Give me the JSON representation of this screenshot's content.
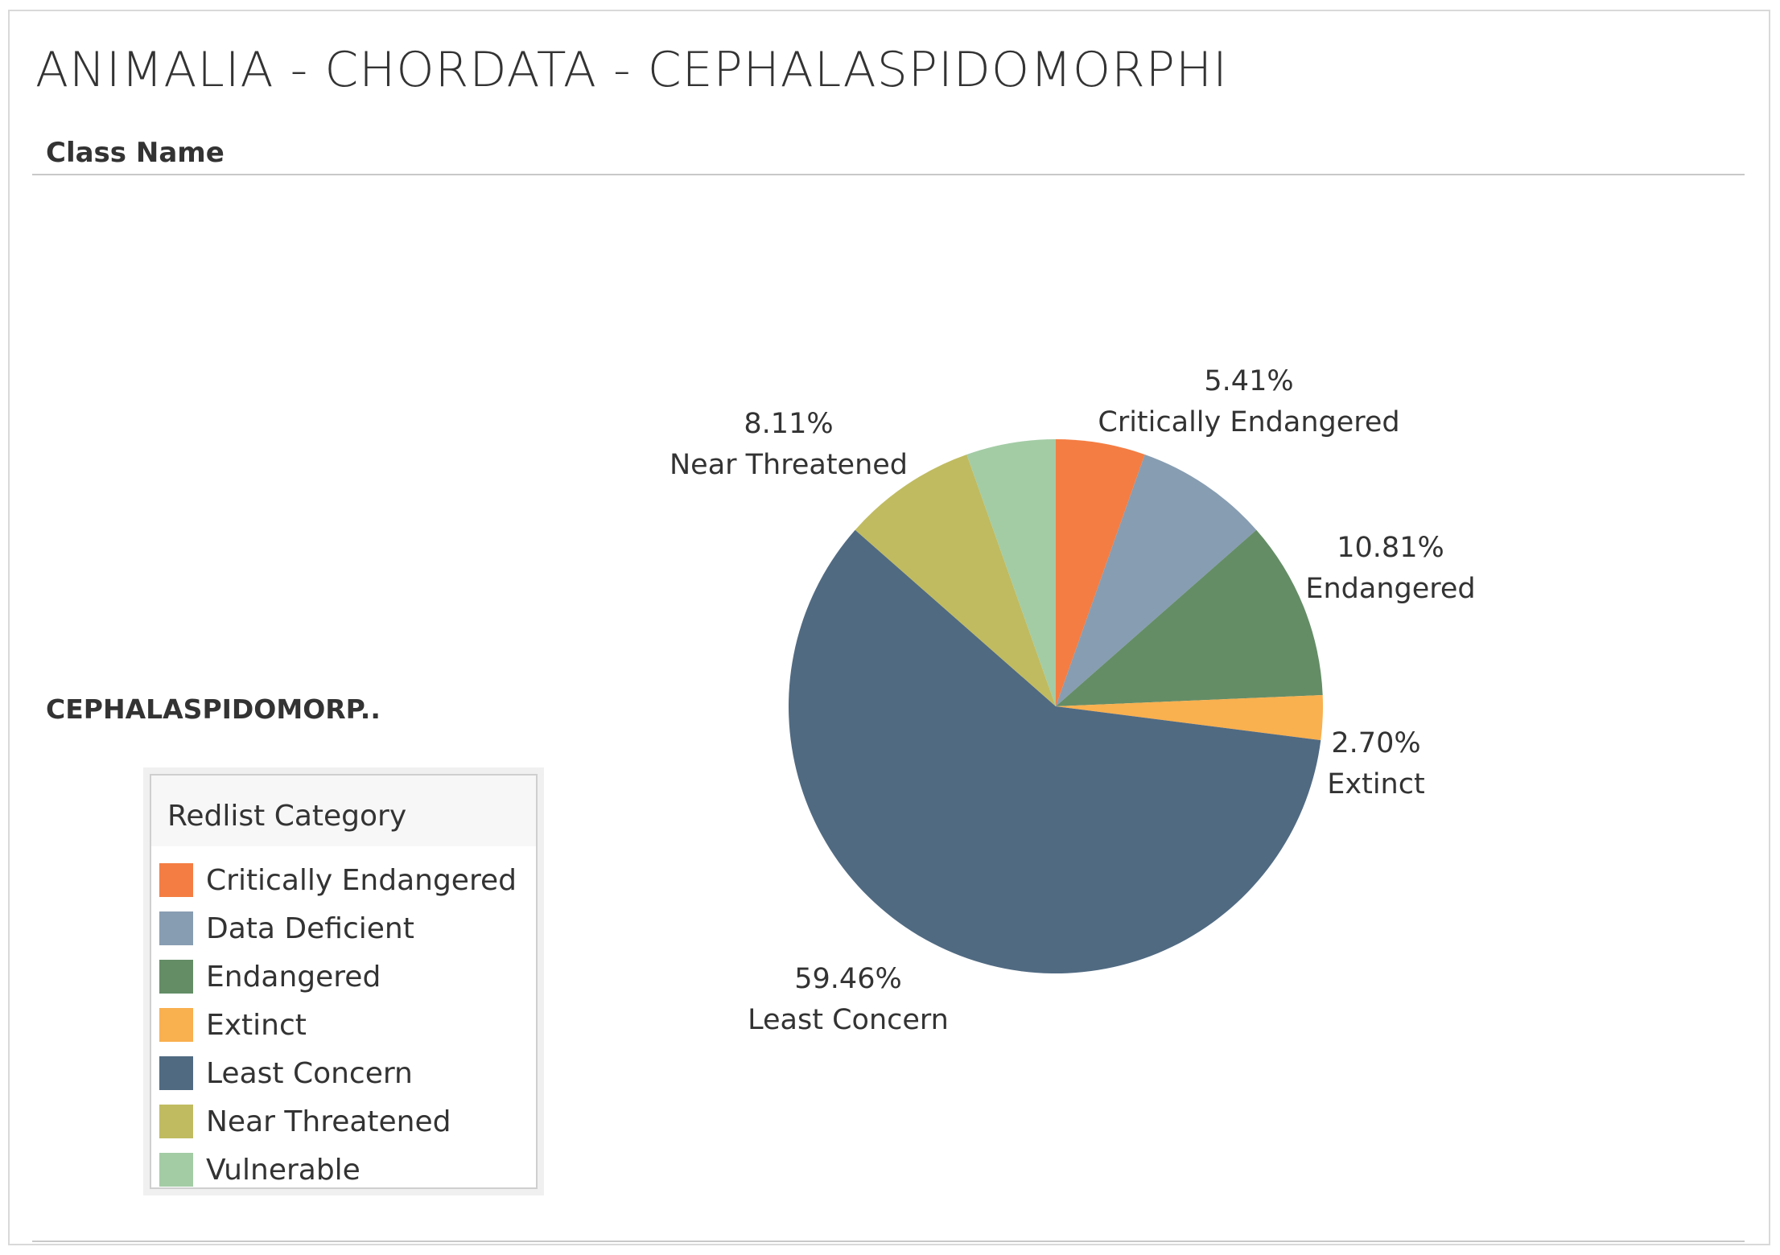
{
  "title": "ANIMALIA - CHORDATA - CEPHALASPIDOMORPHI",
  "column_header": "Class Name",
  "row_label": "CEPHALASPIDOMORP..",
  "legend": {
    "title": "Redlist Category",
    "items": [
      {
        "label": "Critically Endangered",
        "color": "#f47d43"
      },
      {
        "label": "Data Deficient",
        "color": "#879db2"
      },
      {
        "label": "Endangered",
        "color": "#648d66"
      },
      {
        "label": "Extinct",
        "color": "#f9b04f"
      },
      {
        "label": "Least Concern",
        "color": "#506a82"
      },
      {
        "label": "Near Threatened",
        "color": "#c0bb60"
      },
      {
        "label": "Vulnerable",
        "color": "#a3cca5"
      }
    ]
  },
  "chart_data": {
    "type": "pie",
    "legend_position": "left",
    "slices": [
      {
        "name": "Critically Endangered",
        "value": 5.41,
        "label_pct": "5.41%",
        "show_label": true,
        "color": "#f47d43"
      },
      {
        "name": "Data Deficient",
        "value": 8.11,
        "label_pct": "",
        "show_label": false,
        "color": "#879db2"
      },
      {
        "name": "Endangered",
        "value": 10.81,
        "label_pct": "10.81%",
        "show_label": true,
        "color": "#648d66"
      },
      {
        "name": "Extinct",
        "value": 2.7,
        "label_pct": "2.70%",
        "show_label": true,
        "color": "#f9b04f"
      },
      {
        "name": "Least Concern",
        "value": 59.46,
        "label_pct": "59.46%",
        "show_label": true,
        "color": "#506a82"
      },
      {
        "name": "Near Threatened",
        "value": 8.11,
        "label_pct": "8.11%",
        "show_label": true,
        "color": "#c0bb60"
      },
      {
        "name": "Vulnerable",
        "value": 5.41,
        "label_pct": "",
        "show_label": false,
        "color": "#a3cca5"
      }
    ]
  }
}
